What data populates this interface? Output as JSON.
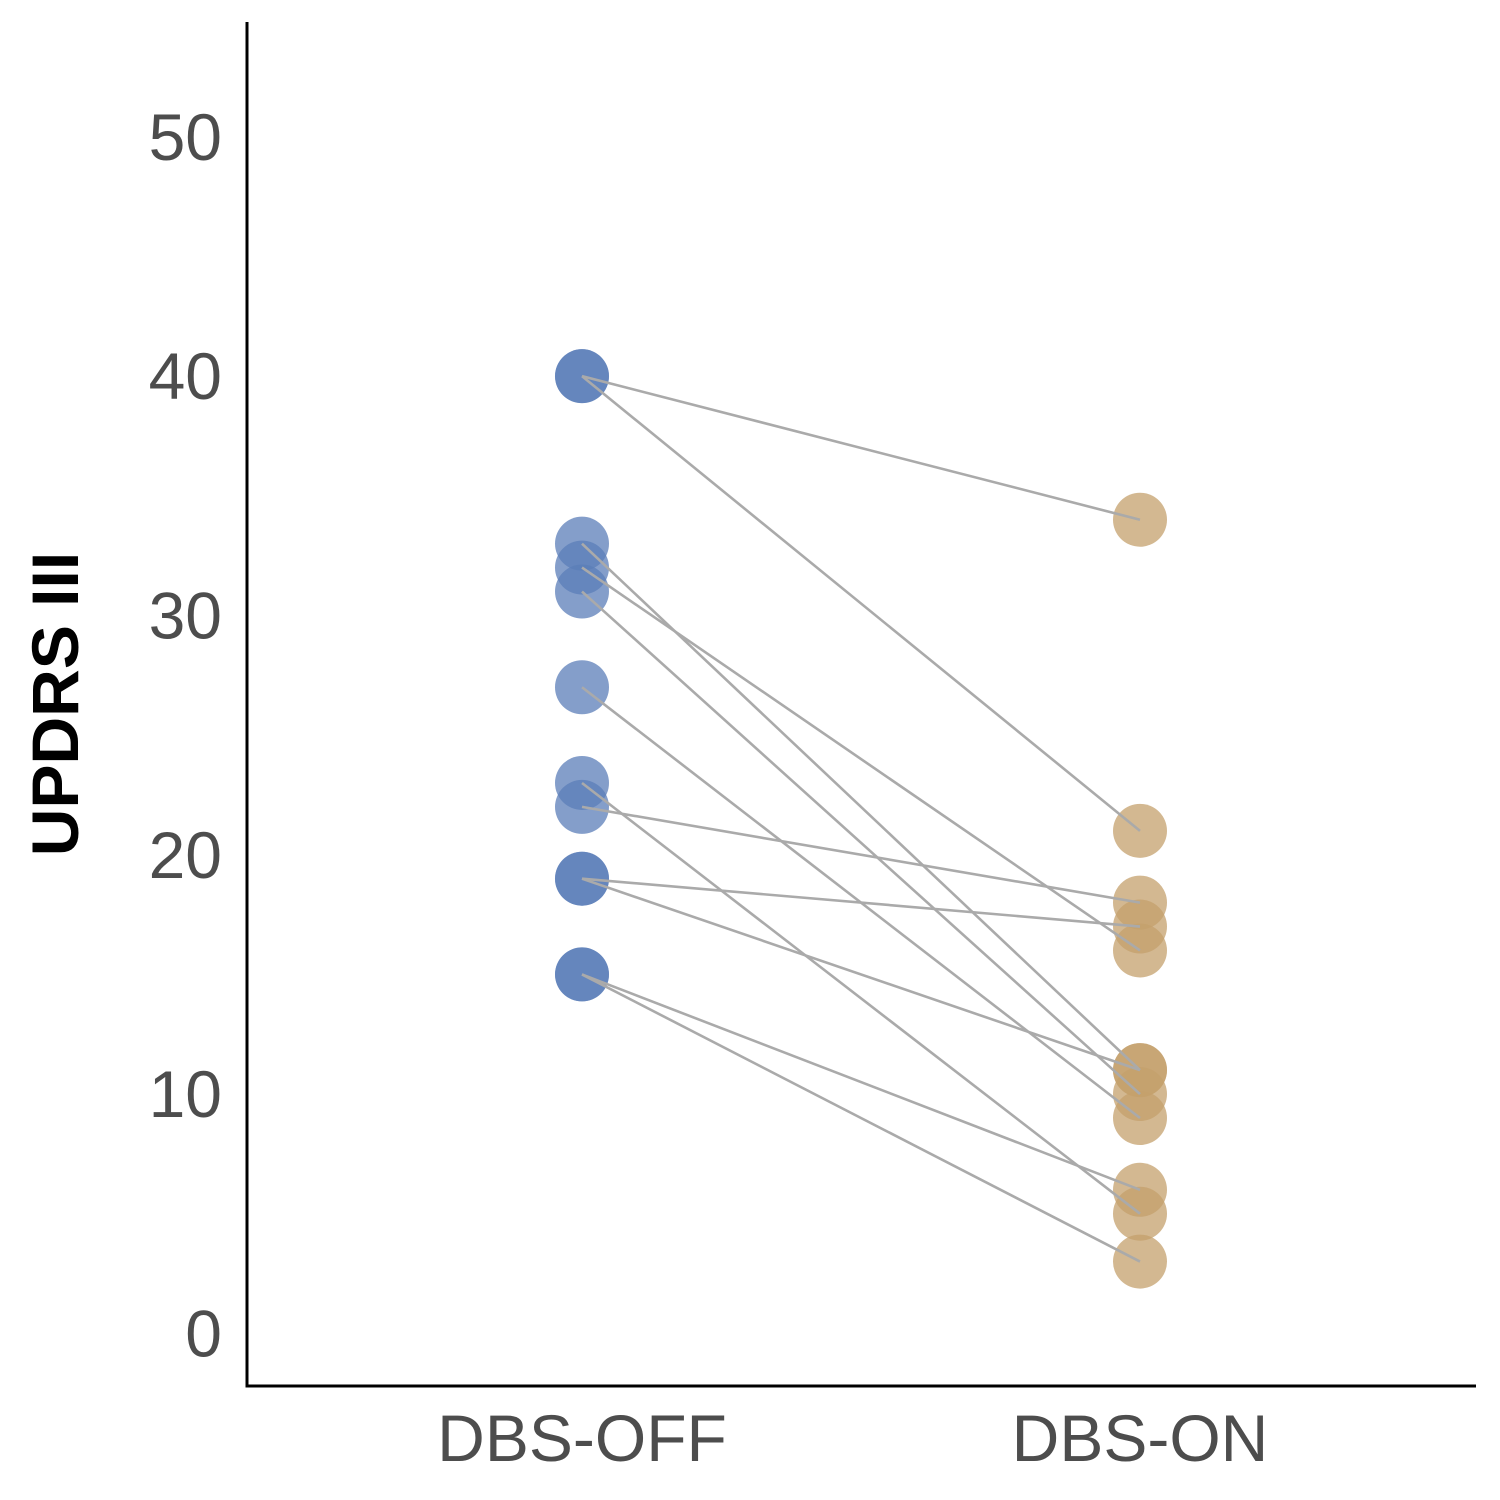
{
  "chart_data": {
    "type": "scatter",
    "subtype": "paired-dot",
    "title": "",
    "xlabel": "",
    "ylabel": "UPDRS III",
    "categories": [
      "DBS-OFF",
      "DBS-ON"
    ],
    "ylim": [
      -2.2,
      54.8
    ],
    "yticks": [
      0,
      10,
      20,
      30,
      40,
      50
    ],
    "grid": false,
    "legend": "none",
    "colors": {
      "DBS-OFF": "#5b7db8",
      "DBS-ON": "#c4a06c",
      "line": "#aaaaaa",
      "axis": "#000000",
      "text": "#4d4d4d"
    },
    "pairs": [
      {
        "off": 40,
        "on": 34
      },
      {
        "off": 40,
        "on": 21
      },
      {
        "off": 33,
        "on": 11
      },
      {
        "off": 32,
        "on": 16
      },
      {
        "off": 31,
        "on": 10
      },
      {
        "off": 27,
        "on": 9
      },
      {
        "off": 23,
        "on": 5
      },
      {
        "off": 22,
        "on": 18
      },
      {
        "off": 19,
        "on": 17
      },
      {
        "off": 19,
        "on": 11
      },
      {
        "off": 15,
        "on": 6
      },
      {
        "off": 15,
        "on": 3
      }
    ]
  }
}
